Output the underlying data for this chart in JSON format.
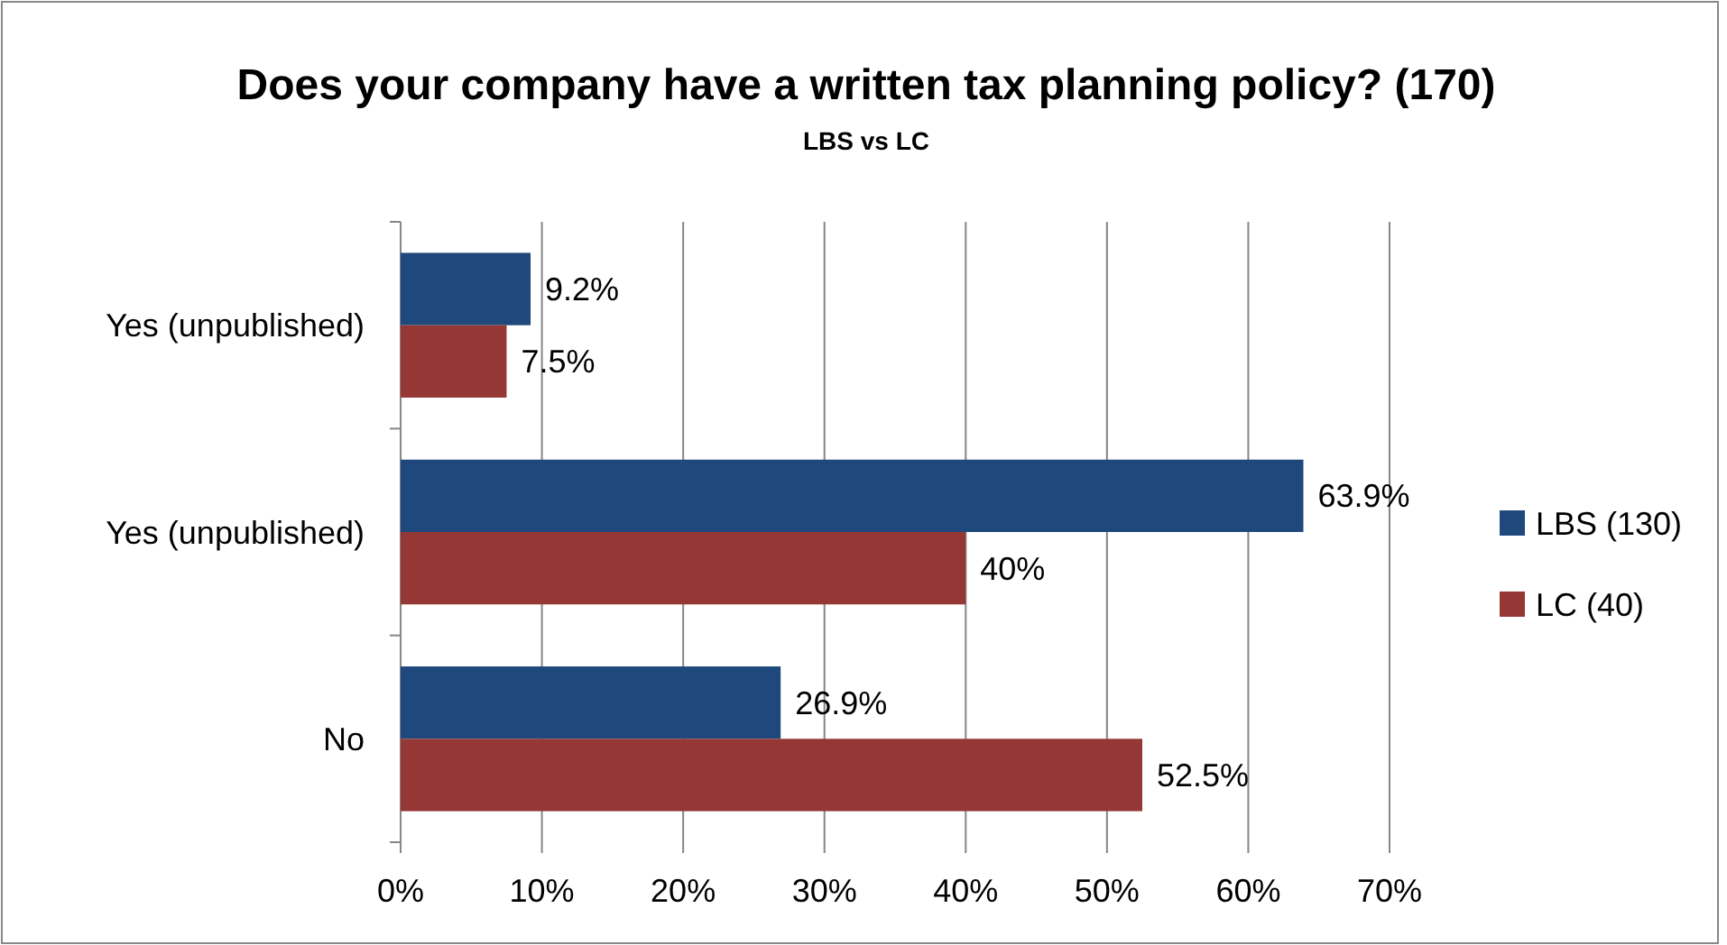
{
  "chart_data": {
    "type": "bar",
    "orientation": "horizontal",
    "title": "Does your company have a written tax planning policy?  (170)",
    "subtitle": "LBS vs LC",
    "categories": [
      "Yes (unpublished)",
      "Yes (unpublished)",
      "No"
    ],
    "series": [
      {
        "name": "LBS (130)",
        "color": "#1f497d",
        "values": [
          9.2,
          63.9,
          26.9
        ],
        "value_labels": [
          "9.2%",
          "63.9%",
          "26.9%"
        ]
      },
      {
        "name": "LC (40)",
        "color": "#953735",
        "values": [
          7.5,
          40,
          52.5
        ],
        "value_labels": [
          "7.5%",
          "40%",
          "52.5%"
        ]
      }
    ],
    "xlim": [
      0,
      70
    ],
    "xticks": [
      {
        "value": 0,
        "label": "0%"
      },
      {
        "value": 10,
        "label": "10%"
      },
      {
        "value": 20,
        "label": "20%"
      },
      {
        "value": 30,
        "label": "30%"
      },
      {
        "value": 40,
        "label": "40%"
      },
      {
        "value": 50,
        "label": "50%"
      },
      {
        "value": 60,
        "label": "60%"
      },
      {
        "value": 70,
        "label": "70%"
      }
    ],
    "grid": "x",
    "legend": "right"
  }
}
